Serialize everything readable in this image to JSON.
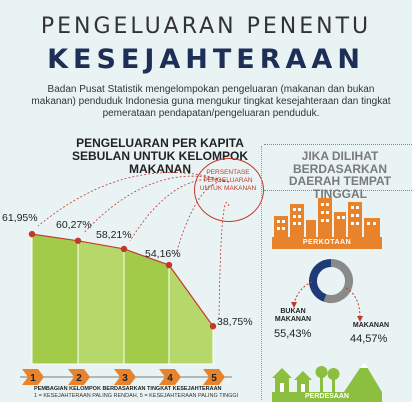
{
  "header": {
    "title_line1": "PENGELUARAN PENENTU",
    "title_line2": "KESEJAHTERAAN",
    "description": "Badan Pusat Statistik mengelompokan pengeluaran (makanan dan bukan makanan) penduduk Indonesia guna mengukur tingkat kesejahteraan dan tingkat pemerataan pendapatan/pengeluaran penduduk."
  },
  "chart_data": [
    {
      "type": "area",
      "title": "PENGELUARAN PER KAPITA SEBULAN UNTUK KELOMPOK MAKANAN",
      "series_label": "PERSENTASE PENGELUARAN UNTUK MAKANAN",
      "categories": [
        "1",
        "2",
        "3",
        "4",
        "5"
      ],
      "values": [
        61.95,
        60.27,
        58.21,
        54.16,
        38.75
      ],
      "value_labels": [
        "61,95%",
        "60,27%",
        "58,21%",
        "54,16%",
        "38,75%"
      ],
      "xlabel": "PEMBAGIAN KELOMPOK BERDASARKAN TINGKAT KESEJAHTERAAN",
      "x_note": "1 = KESEJAHTERAAN PALING RENDAH, 5 = KESEJAHTERAAN PALING TINGGI",
      "ylim": [
        30,
        65
      ]
    },
    {
      "type": "pie",
      "title": "JIKA DILIHAT BERDASARKAN DAERAH TEMPAT TINGGAL",
      "group": "PERKOTAAN",
      "slices": [
        {
          "label": "BUKAN MAKANAN",
          "value": 55.43,
          "value_label": "55,43%",
          "color": "#8a8a8a"
        },
        {
          "label": "MAKANAN",
          "value": 44.57,
          "value_label": "44,57%",
          "color": "#1e3a78"
        }
      ]
    }
  ],
  "right_panel": {
    "title": "JIKA DILIHAT BERDASARKAN DAERAH TEMPAT TINGGAL",
    "urban_label": "PERKOTAAN",
    "rural_label": "PERDESAAN",
    "non_food_label": "BUKAN MAKANAN",
    "non_food_value": "55,43%",
    "food_label": "MAKANAN",
    "food_value": "44,57%"
  },
  "colors": {
    "title_dark": "#1d2e57",
    "area_fill": "#9bc53d",
    "point_red": "#c0392b",
    "step_orange": "#e8822b",
    "pie_grey": "#8a8a8a",
    "pie_navy": "#1e3a78",
    "rural_green": "#8cbf3f"
  }
}
